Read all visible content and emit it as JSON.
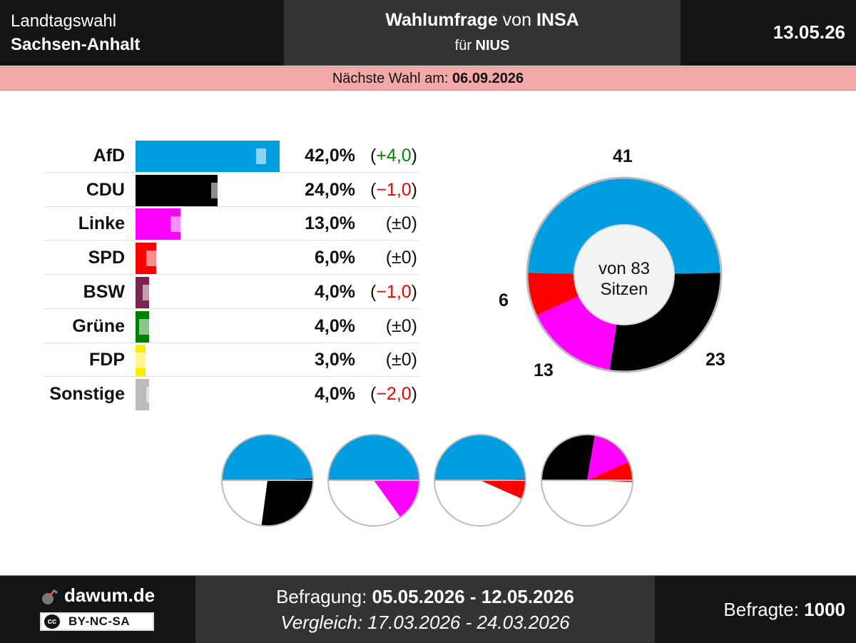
{
  "header": {
    "election_type": "Landtagswahl",
    "state": "Sachsen-Anhalt",
    "title_main": "Wahlumfrage",
    "title_mid": " von ",
    "institute": "INSA",
    "client_prefix": "für ",
    "client": "NIUS",
    "date": "13.05.26"
  },
  "next_election": {
    "label": "Nächste Wahl am: ",
    "date": "06.09.2026"
  },
  "chart_data": [
    {
      "type": "bar",
      "categories": [
        "AfD",
        "CDU",
        "Linke",
        "SPD",
        "BSW",
        "Grüne",
        "FDP",
        "Sonstige"
      ],
      "values": [
        42.0,
        24.0,
        13.0,
        6.0,
        4.0,
        4.0,
        3.0,
        4.0
      ],
      "previous_values": [
        38.0,
        25.0,
        13.0,
        6.0,
        5.0,
        4.0,
        3.0,
        6.0
      ],
      "value_labels": [
        "42,0%",
        "24,0%",
        "13,0%",
        "6,0%",
        "4,0%",
        "4,0%",
        "3,0%",
        "4,0%"
      ],
      "change_labels": [
        "(+4,0)",
        "(−1,0)",
        "(±0)",
        "(±0)",
        "(−1,0)",
        "(±0)",
        "(±0)",
        "(−2,0)"
      ],
      "change_sign": [
        "pos",
        "neg",
        "zero",
        "zero",
        "neg",
        "zero",
        "zero",
        "neg"
      ],
      "colors": [
        "#009ee0",
        "#000000",
        "#ff00ff",
        "#ff0000",
        "#7b2450",
        "#008000",
        "#ffed00",
        "#bbbbbb"
      ]
    },
    {
      "type": "pie",
      "categories": [
        "AfD",
        "CDU",
        "Linke",
        "SPD"
      ],
      "values": [
        41,
        23,
        13,
        6
      ],
      "seat_labels": [
        "41",
        "23",
        "13",
        "6"
      ],
      "colors": [
        "#009ee0",
        "#000000",
        "#ff00ff",
        "#ff0000"
      ],
      "center_text_1": "von 83",
      "center_text_2": "Sitzen"
    },
    {
      "type": "pie",
      "title": "",
      "coalitions": [
        {
          "parties": [
            "AfD",
            "CDU"
          ],
          "seats": [
            41,
            23
          ]
        },
        {
          "parties": [
            "AfD",
            "Linke"
          ],
          "seats": [
            41,
            13
          ]
        },
        {
          "parties": [
            "AfD",
            "SPD"
          ],
          "seats": [
            41,
            6
          ]
        },
        {
          "parties": [
            "CDU",
            "Linke",
            "SPD"
          ],
          "seats": [
            23,
            13,
            6
          ]
        }
      ],
      "total_seats": 83
    }
  ],
  "footer": {
    "brand": "dawum.de",
    "license": "BY-NC-SA",
    "license_logo": "cc",
    "survey_label": "Befragung: ",
    "survey_period": "05.05.2026 - 12.05.2026",
    "compare_label": "Vergleich: ",
    "compare_period": "17.03.2026 - 24.03.2026",
    "respondents_label": "Befragte: ",
    "respondents": "1000"
  }
}
